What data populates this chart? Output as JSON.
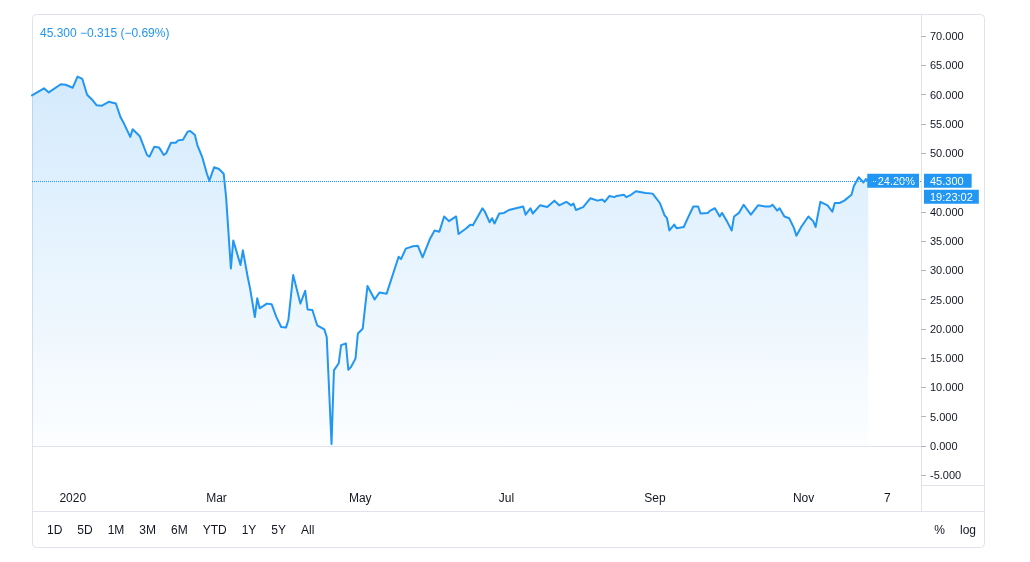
{
  "chart_data": {
    "type": "area",
    "color": "#2196f3",
    "annotations": [
      "45.300 −0.315 (−0.69%)",
      "−24.20%",
      "19:23:02",
      "1D",
      "5D",
      "1M",
      "3M",
      "6M",
      "YTD",
      "1Y",
      "5Y",
      "All",
      "%",
      "log"
    ],
    "xlim": [
      "2019-12-16",
      "2020-12-21"
    ],
    "xticks": [
      {
        "value": "2020-01-02",
        "label": "2020"
      },
      {
        "value": "2020-03-02",
        "label": "Mar"
      },
      {
        "value": "2020-05-01",
        "label": "May"
      },
      {
        "value": "2020-07-01",
        "label": "Jul"
      },
      {
        "value": "2020-09-01",
        "label": "Sep"
      },
      {
        "value": "2020-11-02",
        "label": "Nov"
      },
      {
        "value": "2020-12-07",
        "label": "7"
      }
    ],
    "ylim": [
      -6.7,
      73.8
    ],
    "yticks": [
      {
        "value": -5,
        "label": "-5.000"
      },
      {
        "value": 0,
        "label": "0.000"
      },
      {
        "value": 5,
        "label": "5.000"
      },
      {
        "value": 10,
        "label": "10.000"
      },
      {
        "value": 15,
        "label": "15.000"
      },
      {
        "value": 20,
        "label": "20.000"
      },
      {
        "value": 25,
        "label": "25.000"
      },
      {
        "value": 30,
        "label": "30.000"
      },
      {
        "value": 35,
        "label": "35.000"
      },
      {
        "value": 40,
        "label": "40.000"
      },
      {
        "value": 50,
        "label": "50.000"
      },
      {
        "value": 55,
        "label": "55.000"
      },
      {
        "value": 60,
        "label": "60.000"
      },
      {
        "value": 65,
        "label": "65.000"
      },
      {
        "value": 70,
        "label": "70.000"
      }
    ],
    "ref_lines": [
      {
        "axis": "y",
        "value": 45.3,
        "label": "45.300",
        "color": "#2196f3",
        "line_style": "dotted"
      }
    ],
    "x": [
      "2019-12-16",
      "2019-12-21",
      "2019-12-23",
      "2019-12-28",
      "2019-12-30",
      "2020-01-02",
      "2020-01-04",
      "2020-01-06",
      "2020-01-08",
      "2020-01-10",
      "2020-01-12",
      "2020-01-14",
      "2020-01-17",
      "2020-01-20",
      "2020-01-22",
      "2020-01-23",
      "2020-01-26",
      "2020-01-27",
      "2020-01-30",
      "2020-02-02",
      "2020-02-03",
      "2020-02-05",
      "2020-02-07",
      "2020-02-09",
      "2020-02-10",
      "2020-02-12",
      "2020-02-14",
      "2020-02-15",
      "2020-02-17",
      "2020-02-19",
      "2020-02-20",
      "2020-02-22",
      "2020-02-23",
      "2020-02-25",
      "2020-02-27",
      "2020-02-28",
      "2020-03-01",
      "2020-03-03",
      "2020-03-05",
      "2020-03-06",
      "2020-03-08",
      "2020-03-09",
      "2020-03-10",
      "2020-03-12",
      "2020-03-13",
      "2020-03-15",
      "2020-03-16",
      "2020-03-18",
      "2020-03-19",
      "2020-03-20",
      "2020-03-23",
      "2020-03-25",
      "2020-03-27",
      "2020-03-29",
      "2020-03-31",
      "2020-04-01",
      "2020-04-03",
      "2020-04-06",
      "2020-04-08",
      "2020-04-09",
      "2020-04-11",
      "2020-04-13",
      "2020-04-16",
      "2020-04-17",
      "2020-04-19",
      "2020-04-20",
      "2020-04-22",
      "2020-04-23",
      "2020-04-25",
      "2020-04-26",
      "2020-04-27",
      "2020-04-29",
      "2020-04-30",
      "2020-05-02",
      "2020-05-04",
      "2020-05-07",
      "2020-05-09",
      "2020-05-12",
      "2020-05-17",
      "2020-05-18",
      "2020-05-20",
      "2020-05-23",
      "2020-05-25",
      "2020-05-27",
      "2020-05-30",
      "2020-06-01",
      "2020-06-03",
      "2020-06-05",
      "2020-06-07",
      "2020-06-10",
      "2020-06-11",
      "2020-06-14",
      "2020-06-16",
      "2020-06-17",
      "2020-06-21",
      "2020-06-22",
      "2020-06-24",
      "2020-06-25",
      "2020-06-26",
      "2020-06-28",
      "2020-06-30",
      "2020-07-02",
      "2020-07-05",
      "2020-07-08",
      "2020-07-09",
      "2020-07-11",
      "2020-07-12",
      "2020-07-15",
      "2020-07-18",
      "2020-07-21",
      "2020-07-23",
      "2020-07-26",
      "2020-07-28",
      "2020-07-29",
      "2020-07-30",
      "2020-08-02",
      "2020-08-05",
      "2020-08-08",
      "2020-08-10",
      "2020-08-11",
      "2020-08-13",
      "2020-08-15",
      "2020-08-16",
      "2020-08-19",
      "2020-08-20",
      "2020-08-22",
      "2020-08-24",
      "2020-08-28",
      "2020-08-31",
      "2020-09-03",
      "2020-09-05",
      "2020-09-06",
      "2020-09-07",
      "2020-09-09",
      "2020-09-10",
      "2020-09-13",
      "2020-09-15",
      "2020-09-17",
      "2020-09-19",
      "2020-09-20",
      "2020-09-23",
      "2020-09-24",
      "2020-09-26",
      "2020-09-28",
      "2020-09-29",
      "2020-10-01",
      "2020-10-03",
      "2020-10-04",
      "2020-10-06",
      "2020-10-08",
      "2020-10-11",
      "2020-10-14",
      "2020-10-17",
      "2020-10-19",
      "2020-10-20",
      "2020-10-22",
      "2020-10-23",
      "2020-10-25",
      "2020-10-27",
      "2020-10-29",
      "2020-10-30",
      "2020-11-01",
      "2020-11-04",
      "2020-11-06",
      "2020-11-07",
      "2020-11-09",
      "2020-11-12",
      "2020-11-14",
      "2020-11-15",
      "2020-11-17",
      "2020-11-19",
      "2020-11-22",
      "2020-11-23",
      "2020-11-25",
      "2020-11-27",
      "2020-11-28",
      "2020-11-29"
    ],
    "values": [
      59.9,
      61.1,
      60.4,
      61.8,
      61.7,
      61.2,
      63.1,
      62.7,
      60.0,
      59.2,
      58.2,
      58.1,
      58.8,
      58.5,
      56.1,
      55.4,
      52.8,
      54.1,
      52.9,
      49.7,
      49.4,
      51.1,
      51.0,
      49.7,
      50.0,
      51.8,
      51.8,
      52.2,
      52.3,
      53.7,
      53.8,
      53.1,
      51.4,
      49.4,
      46.5,
      45.3,
      47.6,
      47.3,
      46.5,
      42.5,
      30.3,
      35.1,
      33.7,
      30.9,
      33.4,
      28.9,
      26.9,
      22.0,
      25.2,
      23.5,
      24.3,
      24.2,
      22.0,
      20.3,
      20.2,
      21.5,
      29.2,
      24.3,
      26.5,
      23.3,
      23.2,
      20.6,
      19.9,
      18.6,
      0.3,
      12.9,
      14.1,
      17.2,
      17.5,
      13.0,
      13.4,
      14.9,
      19.2,
      20.0,
      27.3,
      25.0,
      26.2,
      26.0,
      32.3,
      31.9,
      33.7,
      34.1,
      34.2,
      32.2,
      35.3,
      36.8,
      36.6,
      39.2,
      38.4,
      39.2,
      36.2,
      37.1,
      37.8,
      37.7,
      40.6,
      40.0,
      38.2,
      38.9,
      38.0,
      39.7,
      39.8,
      40.3,
      40.6,
      40.9,
      39.5,
      40.6,
      39.7,
      41.1,
      40.8,
      41.9,
      41.1,
      41.7,
      41.1,
      41.4,
      40.3,
      40.8,
      42.3,
      41.9,
      42.1,
      41.7,
      42.7,
      42.5,
      42.7,
      42.9,
      42.5,
      42.9,
      43.5,
      43.2,
      43.1,
      41.5,
      39.4,
      38.9,
      36.8,
      37.8,
      37.2,
      37.4,
      39.2,
      40.9,
      40.9,
      39.7,
      39.8,
      40.2,
      40.6,
      39.2,
      39.8,
      38.4,
      36.8,
      39.2,
      39.8,
      41.2,
      39.5,
      41.1,
      40.9,
      40.9,
      41.2,
      40.2,
      40.6,
      39.2,
      38.9,
      37.2,
      35.9,
      37.4,
      39.2,
      38.4,
      37.4,
      41.7,
      41.1,
      40.0,
      41.5,
      41.5,
      41.9,
      42.9,
      44.4,
      45.9,
      45.0,
      45.6,
      45.3
    ]
  }
}
